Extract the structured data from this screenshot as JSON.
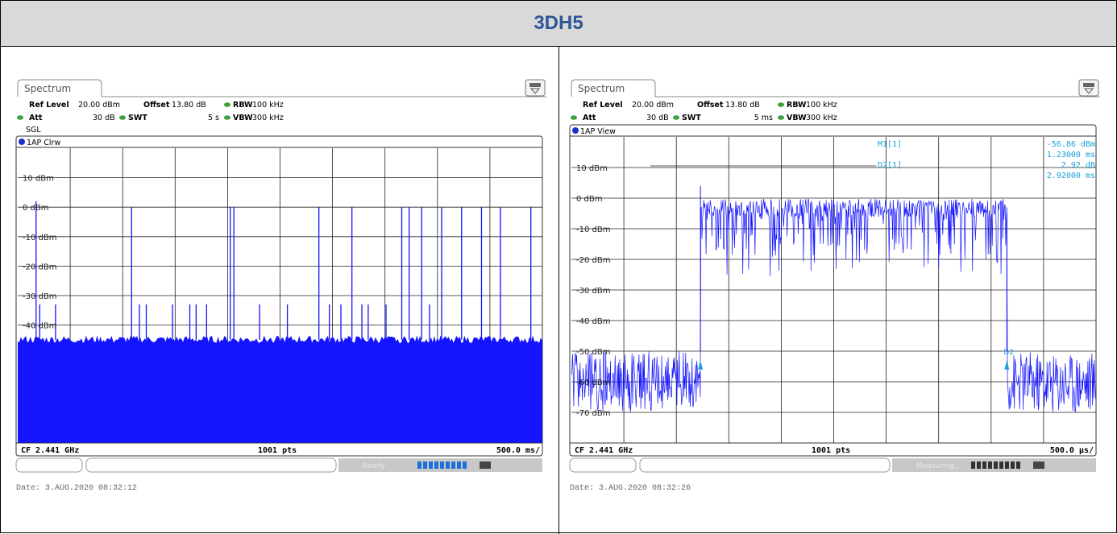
{
  "page_title": "3DH5",
  "colors": {
    "trace": "#1414ff",
    "title": "#2f5597",
    "marker": "#1a9fd8",
    "status_green": "#3ca03c"
  },
  "panels": [
    {
      "tab": "Spectrum",
      "ref_level_label": "Ref Level",
      "ref_level_value": "20.00 dBm",
      "offset_label": "Offset",
      "offset_value": "13.80 dB",
      "rbw_label": "RBW",
      "rbw_value": "100 kHz",
      "att_label": "Att",
      "att_value": "30 dB",
      "swt_label": "SWT",
      "swt_value": "5 s",
      "vbw_label": "VBW",
      "vbw_value": "300 kHz",
      "sgl": "SGL",
      "trace_label": "1AP Clrw",
      "footer_left": "CF 2.441 GHz",
      "footer_center": "1001 pts",
      "footer_right": "500.0 ms/",
      "status_text": "Ready",
      "date": "Date: 3.AUG.2020  08:32:12"
    },
    {
      "tab": "Spectrum",
      "ref_level_label": "Ref Level",
      "ref_level_value": "20.00 dBm",
      "offset_label": "Offset",
      "offset_value": "13.80 dB",
      "rbw_label": "RBW",
      "rbw_value": "100 kHz",
      "att_label": "Att",
      "att_value": "30 dB",
      "swt_label": "SWT",
      "swt_value": "5 ms",
      "vbw_label": "VBW",
      "vbw_value": "300 kHz",
      "sgl": "",
      "trace_label": "1AP View",
      "footer_left": "CF 2.441 GHz",
      "footer_center": "1001 pts",
      "footer_right": "500.0 µs/",
      "status_text": "Measuring...",
      "date": "Date: 3.AUG.2020  08:32:26",
      "markers": [
        {
          "name": "M1[1]",
          "value1": "-56.86 dBm",
          "value2": "1.23000 ms"
        },
        {
          "name": "D2[1]",
          "value1": "2.92 dB",
          "value2": "2.92000 ms"
        }
      ],
      "marker_tags": [
        "M1",
        "D2"
      ]
    }
  ],
  "chart_data": [
    {
      "type": "line",
      "title": "1AP Clrw",
      "xlabel": "CF 2.441 GHz",
      "x_range": [
        0,
        5000
      ],
      "x_unit": "ms",
      "y_range": [
        -80,
        20
      ],
      "y_ticks": [
        "10 dBm",
        "0 dBm",
        "-10 dBm",
        "-20 dBm",
        "-30 dBm",
        "-40 dBm"
      ],
      "noise_floor_dbm": -45,
      "spikes": [
        {
          "x": 175,
          "y": 2
        },
        {
          "x": 210,
          "y": -33
        },
        {
          "x": 360,
          "y": -33
        },
        {
          "x": 1085,
          "y": 0
        },
        {
          "x": 1160,
          "y": -33
        },
        {
          "x": 1225,
          "y": -33
        },
        {
          "x": 1475,
          "y": -33
        },
        {
          "x": 1640,
          "y": -33
        },
        {
          "x": 1700,
          "y": -33
        },
        {
          "x": 1800,
          "y": -33
        },
        {
          "x": 2025,
          "y": 0
        },
        {
          "x": 2060,
          "y": 0
        },
        {
          "x": 2305,
          "y": -33
        },
        {
          "x": 2570,
          "y": -33
        },
        {
          "x": 2870,
          "y": 0
        },
        {
          "x": 2970,
          "y": -33
        },
        {
          "x": 3080,
          "y": -33
        },
        {
          "x": 3185,
          "y": 0
        },
        {
          "x": 3280,
          "y": -33
        },
        {
          "x": 3340,
          "y": -33
        },
        {
          "x": 3510,
          "y": -33
        },
        {
          "x": 3660,
          "y": 0
        },
        {
          "x": 3730,
          "y": 0
        },
        {
          "x": 3850,
          "y": 0
        },
        {
          "x": 3925,
          "y": -33
        },
        {
          "x": 4040,
          "y": 0
        },
        {
          "x": 4230,
          "y": 0
        },
        {
          "x": 4420,
          "y": 0
        },
        {
          "x": 4600,
          "y": 0
        },
        {
          "x": 4890,
          "y": 0
        }
      ],
      "grid": true
    },
    {
      "type": "line",
      "title": "1AP View",
      "xlabel": "CF 2.441 GHz",
      "x_range": [
        0,
        5000
      ],
      "x_unit": "µs",
      "y_range": [
        -80,
        20
      ],
      "y_ticks": [
        "10 dBm",
        "0 dBm",
        "-10 dBm",
        "-20 dBm",
        "-30 dBm",
        "-40 dBm",
        "-50 dBm",
        "-60 dBm",
        "-70 dBm"
      ],
      "burst_start_us": 1230,
      "burst_end_us": 4150,
      "burst_level_dbm": -5,
      "off_level_dbm": -60,
      "grid": true
    }
  ]
}
